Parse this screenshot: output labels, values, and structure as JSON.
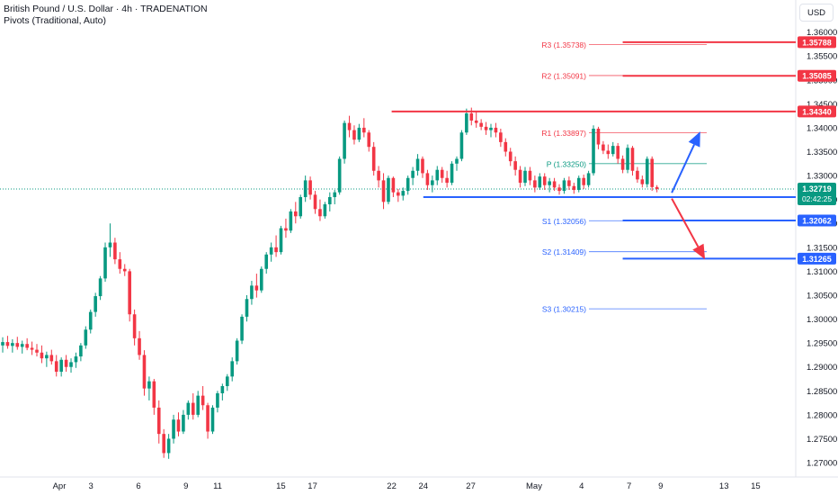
{
  "header": {
    "symbol_line": "British Pound / U.S. Dollar · 4h · TRADENATION",
    "indicator_line": "Pivots (Traditional, Auto)"
  },
  "currency_button": "USD",
  "colors": {
    "up": "#089981",
    "down": "#f23645",
    "resistance": "#f23645",
    "support": "#2962ff",
    "price_line": "#089981",
    "pivot_p": "#089981",
    "axis_text": "#131722"
  },
  "chart_data": {
    "type": "candlestick",
    "y_axis": {
      "range": [
        1.267,
        1.3635
      ],
      "ticks": [
        "1.36000",
        "1.35500",
        "1.35000",
        "1.34500",
        "1.34000",
        "1.33500",
        "1.33000",
        "1.32500",
        "1.32000",
        "1.31500",
        "1.31000",
        "1.30500",
        "1.30000",
        "1.29500",
        "1.29000",
        "1.28500",
        "1.28000",
        "1.27500",
        "1.27000"
      ]
    },
    "x_axis": {
      "ticks": [
        {
          "label": "Apr",
          "day": 0
        },
        {
          "label": "3",
          "day": 2
        },
        {
          "label": "6",
          "day": 5
        },
        {
          "label": "9",
          "day": 8
        },
        {
          "label": "11",
          "day": 10
        },
        {
          "label": "15",
          "day": 14
        },
        {
          "label": "17",
          "day": 16
        },
        {
          "label": "22",
          "day": 21
        },
        {
          "label": "24",
          "day": 23
        },
        {
          "label": "27",
          "day": 26
        },
        {
          "label": "May",
          "day": 30
        },
        {
          "label": "4",
          "day": 33
        },
        {
          "label": "7",
          "day": 36
        },
        {
          "label": "9",
          "day": 38
        },
        {
          "label": "13",
          "day": 42
        },
        {
          "label": "15",
          "day": 44
        }
      ]
    },
    "pivots": [
      {
        "label": "R3 (1.35738)",
        "value": 1.35738,
        "kind": "resistance"
      },
      {
        "label": "R2 (1.35091)",
        "value": 1.35091,
        "kind": "resistance"
      },
      {
        "label": "R1 (1.33897)",
        "value": 1.33897,
        "kind": "resistance"
      },
      {
        "label": "P (1.33250)",
        "value": 1.3325,
        "kind": "pivot"
      },
      {
        "label": "S1 (1.32056)",
        "value": 1.32056,
        "kind": "support"
      },
      {
        "label": "S2 (1.31409)",
        "value": 1.31409,
        "kind": "support"
      },
      {
        "label": "S3 (1.30215)",
        "value": 1.30215,
        "kind": "support"
      }
    ],
    "levels": [
      {
        "value": 1.35788,
        "label": "1.35788",
        "kind": "resistance",
        "x_from_day": 35.6
      },
      {
        "value": 1.35085,
        "label": "1.35085",
        "kind": "resistance",
        "x_from_day": 35.6
      },
      {
        "value": 1.3434,
        "label": "1.34340",
        "kind": "resistance",
        "x_from_day": 21.0
      },
      {
        "value": 1.32551,
        "label": "1.32551",
        "kind": "support",
        "x_from_day": 23.0
      },
      {
        "value": 1.32062,
        "label": "1.32062",
        "kind": "support",
        "x_from_day": 35.6
      },
      {
        "value": 1.31265,
        "label": "1.31265",
        "kind": "support",
        "x_from_day": 35.6
      }
    ],
    "last_price": {
      "value": 1.32719,
      "label": "1.32719",
      "countdown": "02:42:25"
    },
    "arrows": [
      {
        "kind": "up",
        "from_day": 38.7,
        "from_price": 1.3264,
        "to_day": 40.5,
        "to_price": 1.3392
      },
      {
        "kind": "down",
        "from_day": 38.7,
        "from_price": 1.3252,
        "to_day": 40.8,
        "to_price": 1.3125
      }
    ],
    "candles": [
      {
        "o": 1.2945,
        "h": 1.2962,
        "l": 1.293,
        "c": 1.2952
      },
      {
        "o": 1.2952,
        "h": 1.2965,
        "l": 1.2938,
        "c": 1.2944
      },
      {
        "o": 1.2944,
        "h": 1.2958,
        "l": 1.293,
        "c": 1.295
      },
      {
        "o": 1.295,
        "h": 1.2963,
        "l": 1.2936,
        "c": 1.2942
      },
      {
        "o": 1.2942,
        "h": 1.2955,
        "l": 1.2928,
        "c": 1.2948
      },
      {
        "o": 1.2948,
        "h": 1.296,
        "l": 1.2935,
        "c": 1.294
      },
      {
        "o": 1.294,
        "h": 1.2953,
        "l": 1.2925,
        "c": 1.2936
      },
      {
        "o": 1.2936,
        "h": 1.2948,
        "l": 1.2922,
        "c": 1.293
      },
      {
        "o": 1.293,
        "h": 1.2945,
        "l": 1.2908,
        "c": 1.2918
      },
      {
        "o": 1.2918,
        "h": 1.2932,
        "l": 1.29,
        "c": 1.2925
      },
      {
        "o": 1.2925,
        "h": 1.2936,
        "l": 1.2905,
        "c": 1.2912
      },
      {
        "o": 1.2912,
        "h": 1.2925,
        "l": 1.288,
        "c": 1.289
      },
      {
        "o": 1.289,
        "h": 1.292,
        "l": 1.288,
        "c": 1.2915
      },
      {
        "o": 1.2915,
        "h": 1.2925,
        "l": 1.289,
        "c": 1.29
      },
      {
        "o": 1.29,
        "h": 1.2918,
        "l": 1.2888,
        "c": 1.291
      },
      {
        "o": 1.291,
        "h": 1.293,
        "l": 1.2898,
        "c": 1.2922
      },
      {
        "o": 1.2922,
        "h": 1.295,
        "l": 1.2912,
        "c": 1.2945
      },
      {
        "o": 1.2945,
        "h": 1.2985,
        "l": 1.2938,
        "c": 1.2978
      },
      {
        "o": 1.2978,
        "h": 1.302,
        "l": 1.297,
        "c": 1.3015
      },
      {
        "o": 1.3015,
        "h": 1.3055,
        "l": 1.3005,
        "c": 1.3048
      },
      {
        "o": 1.3048,
        "h": 1.309,
        "l": 1.304,
        "c": 1.3085
      },
      {
        "o": 1.3085,
        "h": 1.316,
        "l": 1.3078,
        "c": 1.315
      },
      {
        "o": 1.315,
        "h": 1.32,
        "l": 1.313,
        "c": 1.316
      },
      {
        "o": 1.316,
        "h": 1.317,
        "l": 1.3115,
        "c": 1.3125
      },
      {
        "o": 1.3125,
        "h": 1.314,
        "l": 1.3095,
        "c": 1.3105
      },
      {
        "o": 1.3105,
        "h": 1.3115,
        "l": 1.309,
        "c": 1.31
      },
      {
        "o": 1.31,
        "h": 1.3105,
        "l": 1.2995,
        "c": 1.301
      },
      {
        "o": 1.301,
        "h": 1.302,
        "l": 1.2945,
        "c": 1.296
      },
      {
        "o": 1.296,
        "h": 1.2975,
        "l": 1.2915,
        "c": 1.2925
      },
      {
        "o": 1.2925,
        "h": 1.2935,
        "l": 1.284,
        "c": 1.2855
      },
      {
        "o": 1.2855,
        "h": 1.288,
        "l": 1.283,
        "c": 1.287
      },
      {
        "o": 1.287,
        "h": 1.2875,
        "l": 1.28,
        "c": 1.2815
      },
      {
        "o": 1.2815,
        "h": 1.283,
        "l": 1.274,
        "c": 1.276
      },
      {
        "o": 1.276,
        "h": 1.277,
        "l": 1.271,
        "c": 1.272
      },
      {
        "o": 1.272,
        "h": 1.276,
        "l": 1.2708,
        "c": 1.275
      },
      {
        "o": 1.275,
        "h": 1.28,
        "l": 1.274,
        "c": 1.279
      },
      {
        "o": 1.279,
        "h": 1.2805,
        "l": 1.2755,
        "c": 1.2765
      },
      {
        "o": 1.2765,
        "h": 1.281,
        "l": 1.276,
        "c": 1.28
      },
      {
        "o": 1.28,
        "h": 1.283,
        "l": 1.279,
        "c": 1.2825
      },
      {
        "o": 1.2825,
        "h": 1.2845,
        "l": 1.279,
        "c": 1.28
      },
      {
        "o": 1.28,
        "h": 1.285,
        "l": 1.2795,
        "c": 1.284
      },
      {
        "o": 1.284,
        "h": 1.286,
        "l": 1.281,
        "c": 1.282
      },
      {
        "o": 1.282,
        "h": 1.2825,
        "l": 1.275,
        "c": 1.2765
      },
      {
        "o": 1.2765,
        "h": 1.282,
        "l": 1.276,
        "c": 1.2815
      },
      {
        "o": 1.2815,
        "h": 1.285,
        "l": 1.2805,
        "c": 1.2845
      },
      {
        "o": 1.2845,
        "h": 1.2865,
        "l": 1.283,
        "c": 1.286
      },
      {
        "o": 1.286,
        "h": 1.2885,
        "l": 1.285,
        "c": 1.288
      },
      {
        "o": 1.288,
        "h": 1.292,
        "l": 1.287,
        "c": 1.2912
      },
      {
        "o": 1.2912,
        "h": 1.296,
        "l": 1.2905,
        "c": 1.2955
      },
      {
        "o": 1.2955,
        "h": 1.301,
        "l": 1.2948,
        "c": 1.3005
      },
      {
        "o": 1.3005,
        "h": 1.305,
        "l": 1.2995,
        "c": 1.3042
      },
      {
        "o": 1.3042,
        "h": 1.308,
        "l": 1.303,
        "c": 1.307
      },
      {
        "o": 1.307,
        "h": 1.3095,
        "l": 1.3045,
        "c": 1.306
      },
      {
        "o": 1.306,
        "h": 1.311,
        "l": 1.3055,
        "c": 1.3105
      },
      {
        "o": 1.3105,
        "h": 1.314,
        "l": 1.3095,
        "c": 1.3135
      },
      {
        "o": 1.3135,
        "h": 1.316,
        "l": 1.312,
        "c": 1.315
      },
      {
        "o": 1.315,
        "h": 1.3175,
        "l": 1.313,
        "c": 1.314
      },
      {
        "o": 1.314,
        "h": 1.3195,
        "l": 1.3135,
        "c": 1.319
      },
      {
        "o": 1.319,
        "h": 1.321,
        "l": 1.317,
        "c": 1.3185
      },
      {
        "o": 1.3185,
        "h": 1.323,
        "l": 1.318,
        "c": 1.3225
      },
      {
        "o": 1.3225,
        "h": 1.3245,
        "l": 1.32,
        "c": 1.3215
      },
      {
        "o": 1.3215,
        "h": 1.326,
        "l": 1.321,
        "c": 1.3255
      },
      {
        "o": 1.3255,
        "h": 1.33,
        "l": 1.3245,
        "c": 1.329
      },
      {
        "o": 1.329,
        "h": 1.3298,
        "l": 1.325,
        "c": 1.326
      },
      {
        "o": 1.326,
        "h": 1.3268,
        "l": 1.322,
        "c": 1.323
      },
      {
        "o": 1.323,
        "h": 1.325,
        "l": 1.3205,
        "c": 1.3215
      },
      {
        "o": 1.3215,
        "h": 1.3245,
        "l": 1.321,
        "c": 1.324
      },
      {
        "o": 1.324,
        "h": 1.3265,
        "l": 1.3225,
        "c": 1.3255
      },
      {
        "o": 1.3255,
        "h": 1.327,
        "l": 1.324,
        "c": 1.3265
      },
      {
        "o": 1.3265,
        "h": 1.334,
        "l": 1.326,
        "c": 1.3335
      },
      {
        "o": 1.3335,
        "h": 1.3415,
        "l": 1.3325,
        "c": 1.341
      },
      {
        "o": 1.341,
        "h": 1.3425,
        "l": 1.338,
        "c": 1.3395
      },
      {
        "o": 1.3395,
        "h": 1.3405,
        "l": 1.3365,
        "c": 1.3375
      },
      {
        "o": 1.3375,
        "h": 1.3408,
        "l": 1.337,
        "c": 1.34
      },
      {
        "o": 1.34,
        "h": 1.342,
        "l": 1.338,
        "c": 1.339
      },
      {
        "o": 1.339,
        "h": 1.3395,
        "l": 1.335,
        "c": 1.336
      },
      {
        "o": 1.336,
        "h": 1.337,
        "l": 1.33,
        "c": 1.331
      },
      {
        "o": 1.331,
        "h": 1.332,
        "l": 1.3275,
        "c": 1.329
      },
      {
        "o": 1.329,
        "h": 1.3305,
        "l": 1.323,
        "c": 1.3245
      },
      {
        "o": 1.3245,
        "h": 1.33,
        "l": 1.324,
        "c": 1.3295
      },
      {
        "o": 1.3295,
        "h": 1.3298,
        "l": 1.3255,
        "c": 1.3265
      },
      {
        "o": 1.3265,
        "h": 1.3272,
        "l": 1.3245,
        "c": 1.3258
      },
      {
        "o": 1.3258,
        "h": 1.3275,
        "l": 1.3248,
        "c": 1.3268
      },
      {
        "o": 1.3268,
        "h": 1.33,
        "l": 1.326,
        "c": 1.3295
      },
      {
        "o": 1.3295,
        "h": 1.3318,
        "l": 1.328,
        "c": 1.331
      },
      {
        "o": 1.331,
        "h": 1.3345,
        "l": 1.33,
        "c": 1.3335
      },
      {
        "o": 1.3335,
        "h": 1.334,
        "l": 1.3295,
        "c": 1.3305
      },
      {
        "o": 1.3305,
        "h": 1.3312,
        "l": 1.327,
        "c": 1.328
      },
      {
        "o": 1.328,
        "h": 1.33,
        "l": 1.3265,
        "c": 1.329
      },
      {
        "o": 1.329,
        "h": 1.332,
        "l": 1.328,
        "c": 1.3312
      },
      {
        "o": 1.3312,
        "h": 1.3318,
        "l": 1.3285,
        "c": 1.3295
      },
      {
        "o": 1.3295,
        "h": 1.331,
        "l": 1.3275,
        "c": 1.3285
      },
      {
        "o": 1.3285,
        "h": 1.333,
        "l": 1.328,
        "c": 1.3325
      },
      {
        "o": 1.3325,
        "h": 1.334,
        "l": 1.331,
        "c": 1.3335
      },
      {
        "o": 1.3335,
        "h": 1.3395,
        "l": 1.333,
        "c": 1.339
      },
      {
        "o": 1.339,
        "h": 1.344,
        "l": 1.3385,
        "c": 1.343
      },
      {
        "o": 1.343,
        "h": 1.3442,
        "l": 1.3405,
        "c": 1.3415
      },
      {
        "o": 1.3415,
        "h": 1.3435,
        "l": 1.34,
        "c": 1.341
      },
      {
        "o": 1.341,
        "h": 1.3418,
        "l": 1.3395,
        "c": 1.3402
      },
      {
        "o": 1.3402,
        "h": 1.3412,
        "l": 1.3385,
        "c": 1.3395
      },
      {
        "o": 1.3395,
        "h": 1.3408,
        "l": 1.338,
        "c": 1.34
      },
      {
        "o": 1.34,
        "h": 1.341,
        "l": 1.338,
        "c": 1.339
      },
      {
        "o": 1.339,
        "h": 1.3398,
        "l": 1.336,
        "c": 1.337
      },
      {
        "o": 1.337,
        "h": 1.3378,
        "l": 1.334,
        "c": 1.335
      },
      {
        "o": 1.335,
        "h": 1.3358,
        "l": 1.332,
        "c": 1.333
      },
      {
        "o": 1.333,
        "h": 1.334,
        "l": 1.33,
        "c": 1.3312
      },
      {
        "o": 1.3312,
        "h": 1.332,
        "l": 1.3275,
        "c": 1.3285
      },
      {
        "o": 1.3285,
        "h": 1.3318,
        "l": 1.3278,
        "c": 1.331
      },
      {
        "o": 1.331,
        "h": 1.3318,
        "l": 1.328,
        "c": 1.329
      },
      {
        "o": 1.329,
        "h": 1.33,
        "l": 1.3265,
        "c": 1.3275
      },
      {
        "o": 1.3275,
        "h": 1.3305,
        "l": 1.327,
        "c": 1.3298
      },
      {
        "o": 1.3298,
        "h": 1.3305,
        "l": 1.327,
        "c": 1.328
      },
      {
        "o": 1.328,
        "h": 1.3295,
        "l": 1.3265,
        "c": 1.3288
      },
      {
        "o": 1.3288,
        "h": 1.3295,
        "l": 1.3268,
        "c": 1.3275
      },
      {
        "o": 1.3275,
        "h": 1.3282,
        "l": 1.326,
        "c": 1.3268
      },
      {
        "o": 1.3268,
        "h": 1.3295,
        "l": 1.3262,
        "c": 1.329
      },
      {
        "o": 1.329,
        "h": 1.3298,
        "l": 1.327,
        "c": 1.3278
      },
      {
        "o": 1.3278,
        "h": 1.3285,
        "l": 1.3262,
        "c": 1.327
      },
      {
        "o": 1.327,
        "h": 1.33,
        "l": 1.3265,
        "c": 1.3295
      },
      {
        "o": 1.3295,
        "h": 1.3302,
        "l": 1.3272,
        "c": 1.328
      },
      {
        "o": 1.328,
        "h": 1.331,
        "l": 1.3275,
        "c": 1.3305
      },
      {
        "o": 1.3305,
        "h": 1.3405,
        "l": 1.33,
        "c": 1.3398
      },
      {
        "o": 1.3398,
        "h": 1.3402,
        "l": 1.3355,
        "c": 1.3365
      },
      {
        "o": 1.3365,
        "h": 1.3372,
        "l": 1.3345,
        "c": 1.3352
      },
      {
        "o": 1.3352,
        "h": 1.3365,
        "l": 1.3335,
        "c": 1.3345
      },
      {
        "o": 1.3345,
        "h": 1.337,
        "l": 1.334,
        "c": 1.3362
      },
      {
        "o": 1.3362,
        "h": 1.3368,
        "l": 1.3325,
        "c": 1.3335
      },
      {
        "o": 1.3335,
        "h": 1.3342,
        "l": 1.3305,
        "c": 1.3312
      },
      {
        "o": 1.3312,
        "h": 1.3365,
        "l": 1.3305,
        "c": 1.3358
      },
      {
        "o": 1.3358,
        "h": 1.3362,
        "l": 1.33,
        "c": 1.331
      },
      {
        "o": 1.331,
        "h": 1.3318,
        "l": 1.3285,
        "c": 1.3292
      },
      {
        "o": 1.3292,
        "h": 1.33,
        "l": 1.3275,
        "c": 1.3282
      },
      {
        "o": 1.3282,
        "h": 1.334,
        "l": 1.3275,
        "c": 1.3335
      },
      {
        "o": 1.3335,
        "h": 1.334,
        "l": 1.3268,
        "c": 1.3276
      },
      {
        "o": 1.3276,
        "h": 1.328,
        "l": 1.3265,
        "c": 1.32719
      }
    ]
  }
}
